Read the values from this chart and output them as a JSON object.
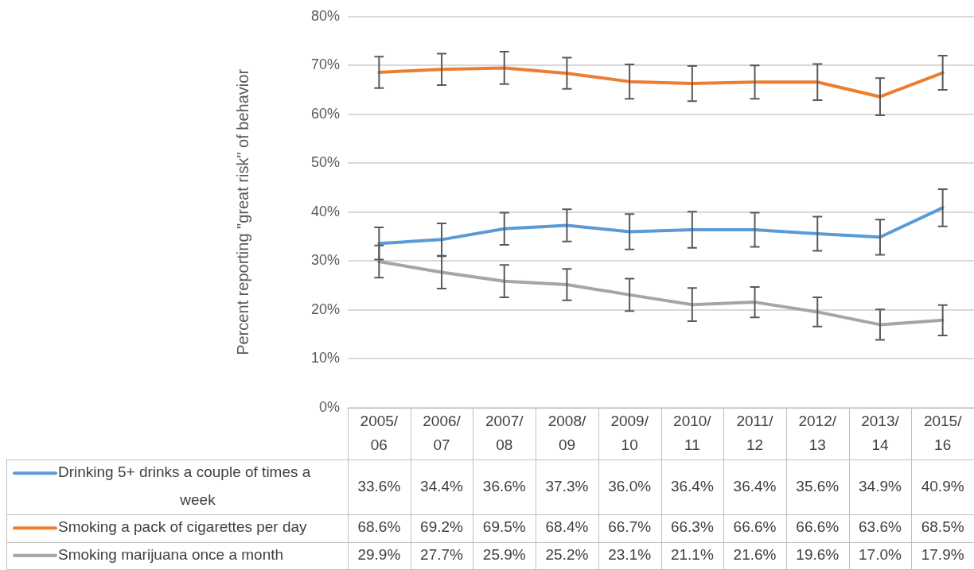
{
  "chart_data": {
    "type": "line",
    "ylabel": "Percent reporting \"great risk\" of behavior",
    "categories": [
      "2005/06",
      "2006/07",
      "2007/08",
      "2008/09",
      "2009/10",
      "2010/11",
      "2011/12",
      "2012/13",
      "2013/14",
      "2015/16"
    ],
    "series": [
      {
        "name": "Drinking 5+ drinks a couple of times a week",
        "color": "#5b9bd5",
        "values": [
          33.6,
          34.4,
          36.6,
          37.3,
          36.0,
          36.4,
          36.4,
          35.6,
          34.9,
          40.9
        ],
        "errors": [
          3.3,
          3.3,
          3.3,
          3.3,
          3.6,
          3.7,
          3.5,
          3.5,
          3.6,
          3.8
        ],
        "value_labels": [
          "33.6%",
          "34.4%",
          "36.6%",
          "37.3%",
          "36.0%",
          "36.4%",
          "36.4%",
          "35.6%",
          "34.9%",
          "40.9%"
        ]
      },
      {
        "name": "Smoking a pack of cigarettes per day",
        "color": "#ed7d31",
        "values": [
          68.6,
          69.2,
          69.5,
          68.4,
          66.7,
          66.3,
          66.6,
          66.6,
          63.6,
          68.5
        ],
        "errors": [
          3.2,
          3.2,
          3.3,
          3.2,
          3.5,
          3.6,
          3.4,
          3.7,
          3.8,
          3.5
        ],
        "value_labels": [
          "68.6%",
          "69.2%",
          "69.5%",
          "68.4%",
          "66.7%",
          "66.3%",
          "66.6%",
          "66.6%",
          "63.6%",
          "68.5%"
        ]
      },
      {
        "name": "Smoking marijuana once a month",
        "color": "#a5a5a5",
        "values": [
          29.9,
          27.7,
          25.9,
          25.2,
          23.1,
          21.1,
          21.6,
          19.6,
          17.0,
          17.9
        ],
        "errors": [
          3.3,
          3.3,
          3.3,
          3.2,
          3.3,
          3.4,
          3.1,
          3.0,
          3.1,
          3.1
        ],
        "value_labels": [
          "29.9%",
          "27.7%",
          "25.9%",
          "25.2%",
          "23.1%",
          "21.1%",
          "21.6%",
          "19.6%",
          "17.0%",
          "17.9%"
        ]
      }
    ],
    "ylim": [
      0,
      80
    ],
    "yticks": [
      {
        "value": 0,
        "label": "0%"
      },
      {
        "value": 10,
        "label": "10%"
      },
      {
        "value": 20,
        "label": "20%"
      },
      {
        "value": 30,
        "label": "30%"
      },
      {
        "value": 40,
        "label": "40%"
      },
      {
        "value": 50,
        "label": "50%"
      },
      {
        "value": 60,
        "label": "60%"
      },
      {
        "value": 70,
        "label": "70%"
      },
      {
        "value": 80,
        "label": "80%"
      }
    ],
    "grid": "y",
    "legend": "bottom",
    "marker": "none",
    "line_style": "solid"
  }
}
